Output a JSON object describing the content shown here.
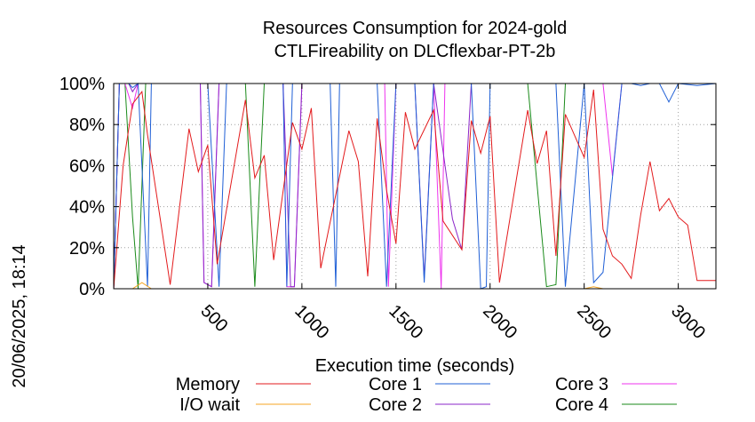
{
  "chart_data": {
    "type": "line",
    "title": "Resources Consumption for 2024-gold",
    "subtitle": "CTLFireability on DLCflexbar-PT-2b",
    "xlabel": "Execution time (seconds)",
    "ylabel": "",
    "side_label": "20/06/2025, 18:14",
    "xlim": [
      0,
      3200
    ],
    "ylim": [
      0,
      100
    ],
    "x_ticks": [
      500,
      1000,
      1500,
      2000,
      2500,
      3000
    ],
    "x_tick_labels": [
      "500",
      "1000",
      "1500",
      "2000",
      "2500",
      "3000"
    ],
    "y_ticks": [
      0,
      20,
      40,
      60,
      80,
      100
    ],
    "y_tick_labels": [
      "0%",
      "20%",
      "40%",
      "60%",
      "80%",
      "100%"
    ],
    "grid": true,
    "legend_position": "bottom",
    "series": [
      {
        "name": "Memory",
        "color": "#e31a1c",
        "x": [
          0,
          50,
          100,
          150,
          180,
          300,
          400,
          450,
          500,
          550,
          700,
          750,
          800,
          850,
          950,
          1000,
          1050,
          1100,
          1250,
          1300,
          1350,
          1400,
          1450,
          1500,
          1550,
          1600,
          1700,
          1750,
          1850,
          1900,
          1950,
          2000,
          2050,
          2200,
          2250,
          2300,
          2350,
          2400,
          2500,
          2550,
          2600,
          2650,
          2700,
          2750,
          2800,
          2850,
          2900,
          2950,
          3000,
          3050,
          3100,
          3150,
          3200
        ],
        "y": [
          0,
          60,
          90,
          96,
          75,
          2,
          78,
          57,
          70,
          12,
          92,
          54,
          65,
          14,
          81,
          68,
          88,
          10,
          77,
          62,
          6,
          83,
          48,
          22,
          86,
          68,
          87,
          33,
          19,
          82,
          66,
          84,
          3,
          87,
          61,
          77,
          16,
          85,
          64,
          97,
          29,
          16,
          12,
          5,
          36,
          62,
          38,
          44,
          35,
          31,
          4,
          4,
          4
        ]
      },
      {
        "name": "I/O wait",
        "color": "#f5a623",
        "x": [
          0,
          100,
          150,
          200,
          300,
          2500,
          2550,
          2600,
          3200
        ],
        "y": [
          0,
          0,
          3,
          0,
          0,
          0,
          1,
          0,
          0
        ]
      },
      {
        "name": "Core 1",
        "color": "#1f5fd6",
        "x": [
          0,
          30,
          80,
          100,
          130,
          180,
          200,
          500,
          560,
          600,
          900,
          920,
          950,
          1000,
          1050,
          1150,
          1180,
          1200,
          1400,
          1450,
          1500,
          1600,
          1650,
          1700,
          1750,
          1800,
          1900,
          1950,
          1980,
          2000,
          2350,
          2400,
          2500,
          2550,
          2600,
          2700,
          2750,
          2800,
          2850,
          2900,
          2950,
          3000,
          3100,
          3200
        ],
        "y": [
          0,
          100,
          100,
          98,
          100,
          1,
          100,
          100,
          1,
          100,
          100,
          1,
          100,
          100,
          100,
          100,
          1,
          100,
          100,
          1,
          100,
          100,
          3,
          100,
          100,
          100,
          100,
          0,
          1,
          100,
          100,
          1,
          100,
          3,
          8,
          100,
          100,
          99,
          100,
          100,
          91,
          100,
          99,
          100
        ]
      },
      {
        "name": "Core 2",
        "color": "#8b25c8",
        "x": [
          0,
          30,
          80,
          100,
          130,
          160,
          200,
          460,
          480,
          520,
          560,
          900,
          940,
          960,
          1000,
          1250,
          1300,
          1600,
          1650,
          1700,
          1800,
          1850,
          1900,
          2000,
          2050,
          2100,
          2300,
          2350,
          2400,
          2600,
          2650,
          2700,
          3200
        ],
        "y": [
          0,
          100,
          100,
          96,
          100,
          100,
          100,
          100,
          3,
          1,
          100,
          100,
          1,
          1,
          100,
          100,
          100,
          100,
          5,
          100,
          34,
          19,
          100,
          100,
          100,
          100,
          100,
          100,
          100,
          100,
          100,
          100,
          100
        ]
      },
      {
        "name": "Core 3",
        "color": "#ee33ee",
        "x": [
          0,
          30,
          60,
          100,
          130,
          160,
          200,
          460,
          480,
          520,
          560,
          900,
          920,
          960,
          1000,
          1440,
          1460,
          1500,
          1700,
          1740,
          1760,
          1800,
          1900,
          2000,
          2050,
          2100,
          2300,
          2400,
          2450,
          2500,
          2600,
          2650,
          2700,
          2750,
          3200
        ],
        "y": [
          0,
          100,
          100,
          88,
          100,
          100,
          100,
          100,
          3,
          1,
          100,
          100,
          1,
          1,
          100,
          100,
          1,
          100,
          100,
          0,
          100,
          100,
          100,
          100,
          100,
          100,
          100,
          100,
          100,
          100,
          100,
          55,
          100,
          100,
          100
        ]
      },
      {
        "name": "Core 4",
        "color": "#1a8a1a",
        "x": [
          0,
          30,
          60,
          100,
          130,
          170,
          200,
          250,
          400,
          500,
          550,
          600,
          650,
          700,
          750,
          800,
          1000,
          1100,
          1200,
          1500,
          1700,
          1900,
          2100,
          2200,
          2300,
          2350,
          2400,
          3200
        ],
        "y": [
          0,
          100,
          100,
          35,
          0,
          100,
          100,
          100,
          100,
          100,
          100,
          100,
          100,
          100,
          1,
          100,
          100,
          100,
          100,
          100,
          100,
          100,
          100,
          100,
          1,
          2,
          100,
          100
        ]
      }
    ]
  }
}
